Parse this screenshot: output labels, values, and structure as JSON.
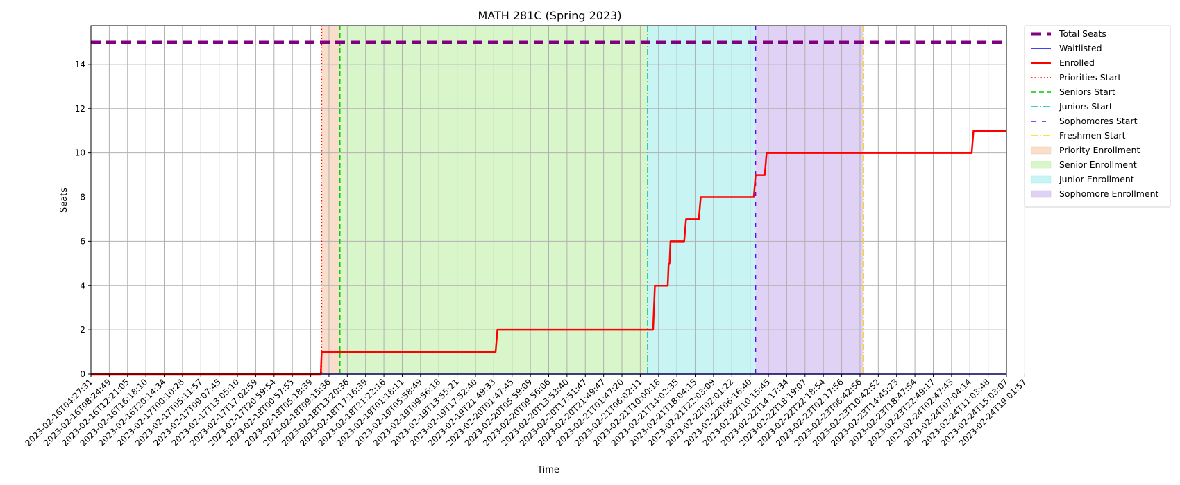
{
  "chart_data": {
    "type": "line",
    "title": "MATH 281C (Spring 2023)",
    "xlabel": "Time",
    "ylabel": "Seats",
    "ylim": [
      0,
      15.75
    ],
    "yticks": [
      0,
      2,
      4,
      6,
      8,
      10,
      12,
      14
    ],
    "grid": true,
    "legend_position": "outside top-right",
    "xtick_labels": [
      "2023-02-16T04:27:31",
      "2023-02-16T08:24:49",
      "2023-02-16T12:21:05",
      "2023-02-16T16:18:10",
      "2023-02-16T20:14:34",
      "2023-02-17T00:10:28",
      "2023-02-17T05:11:57",
      "2023-02-17T09:07:45",
      "2023-02-17T13:05:10",
      "2023-02-17T17:02:59",
      "2023-02-17T20:59:54",
      "2023-02-18T00:57:55",
      "2023-02-18T05:18:39",
      "2023-02-18T09:15:36",
      "2023-02-18T13:20:36",
      "2023-02-18T17:16:39",
      "2023-02-18T21:22:16",
      "2023-02-19T01:18:11",
      "2023-02-19T05:58:49",
      "2023-02-19T09:56:18",
      "2023-02-19T13:55:21",
      "2023-02-19T17:52:40",
      "2023-02-19T21:49:33",
      "2023-02-20T01:47:45",
      "2023-02-20T05:59:09",
      "2023-02-20T09:56:06",
      "2023-02-20T13:53:40",
      "2023-02-20T17:51:47",
      "2023-02-20T21:49:47",
      "2023-02-21T01:47:20",
      "2023-02-21T06:02:11",
      "2023-02-21T10:00:18",
      "2023-02-21T14:02:35",
      "2023-02-21T18:04:15",
      "2023-02-21T22:03:09",
      "2023-02-22T02:01:22",
      "2023-02-22T06:16:40",
      "2023-02-22T10:15:45",
      "2023-02-22T14:17:34",
      "2023-02-22T18:19:07",
      "2023-02-22T22:18:54",
      "2023-02-23T02:17:56",
      "2023-02-23T06:42:56",
      "2023-02-23T10:42:52",
      "2023-02-23T14:45:23",
      "2023-02-23T18:47:54",
      "2023-02-23T22:49:17",
      "2023-02-24T02:47:43",
      "2023-02-24T07:04:14",
      "2023-02-24T11:03:48",
      "2023-02-24T15:03:07",
      "2023-02-24T19:01:57"
    ],
    "x_index_range": [
      0,
      50
    ],
    "series": [
      {
        "name": "Total Seats",
        "color": "#800080",
        "style": "dashed-thick",
        "points": [
          [
            0,
            15
          ],
          [
            50,
            15
          ]
        ]
      },
      {
        "name": "Waitlisted",
        "color": "#0000ff",
        "style": "solid",
        "points": [
          [
            0,
            0
          ],
          [
            50,
            0
          ]
        ]
      },
      {
        "name": "Enrolled",
        "color": "#ff0000",
        "style": "solid-thick",
        "points": [
          [
            0,
            0
          ],
          [
            12.55,
            0
          ],
          [
            12.6,
            1
          ],
          [
            22.1,
            1
          ],
          [
            22.2,
            2
          ],
          [
            30.7,
            2
          ],
          [
            30.8,
            4
          ],
          [
            31.5,
            4
          ],
          [
            31.55,
            5
          ],
          [
            31.6,
            5
          ],
          [
            31.65,
            6
          ],
          [
            32.4,
            6
          ],
          [
            32.5,
            7
          ],
          [
            33.2,
            7
          ],
          [
            33.3,
            8
          ],
          [
            36.2,
            8
          ],
          [
            36.3,
            9
          ],
          [
            36.8,
            9
          ],
          [
            36.9,
            10
          ],
          [
            48.1,
            10
          ],
          [
            48.2,
            11
          ],
          [
            50,
            11
          ]
        ]
      }
    ],
    "markers": [
      {
        "name": "Priorities Start",
        "x": 12.6,
        "color": "#ff0000",
        "style": "dotted"
      },
      {
        "name": "Seniors Start",
        "x": 13.6,
        "color": "#00cc00",
        "style": "dashed"
      },
      {
        "name": "Juniors Start",
        "x": 30.4,
        "color": "#00bfbf",
        "style": "dashdot"
      },
      {
        "name": "Sophomores Start",
        "x": 36.3,
        "color": "#6a00ff",
        "style": "loosely-dashed"
      },
      {
        "name": "Freshmen Start",
        "x": 42.2,
        "color": "#ffd700",
        "style": "dashdot"
      }
    ],
    "spans": [
      {
        "name": "Priority Enrollment",
        "from": 12.6,
        "to": 13.6,
        "color": "#f5c9a8"
      },
      {
        "name": "Senior Enrollment",
        "from": 13.6,
        "to": 30.4,
        "color": "#bff0a8"
      },
      {
        "name": "Junior Enrollment",
        "from": 30.4,
        "to": 36.3,
        "color": "#a5ecec"
      },
      {
        "name": "Sophomore Enrollment",
        "from": 36.3,
        "to": 42.2,
        "color": "#c9b4ee"
      }
    ],
    "legend": [
      {
        "label": "Total Seats",
        "kind": "line",
        "color": "#800080",
        "style": "dashed-thick"
      },
      {
        "label": "Waitlisted",
        "kind": "line",
        "color": "#0000ff",
        "style": "solid"
      },
      {
        "label": "Enrolled",
        "kind": "line",
        "color": "#ff0000",
        "style": "solid-thick"
      },
      {
        "label": "Priorities Start",
        "kind": "line",
        "color": "#ff0000",
        "style": "dotted"
      },
      {
        "label": "Seniors Start",
        "kind": "line",
        "color": "#00cc00",
        "style": "dashed"
      },
      {
        "label": "Juniors Start",
        "kind": "line",
        "color": "#00bfbf",
        "style": "dashdot"
      },
      {
        "label": "Sophomores Start",
        "kind": "line",
        "color": "#6a00ff",
        "style": "loosely-dashed"
      },
      {
        "label": "Freshmen Start",
        "kind": "line",
        "color": "#ffd700",
        "style": "dashdot"
      },
      {
        "label": "Priority Enrollment",
        "kind": "patch",
        "color": "#f5c9a8"
      },
      {
        "label": "Senior Enrollment",
        "kind": "patch",
        "color": "#bff0a8"
      },
      {
        "label": "Junior Enrollment",
        "kind": "patch",
        "color": "#a5ecec"
      },
      {
        "label": "Sophomore Enrollment",
        "kind": "patch",
        "color": "#c9b4ee"
      }
    ]
  }
}
